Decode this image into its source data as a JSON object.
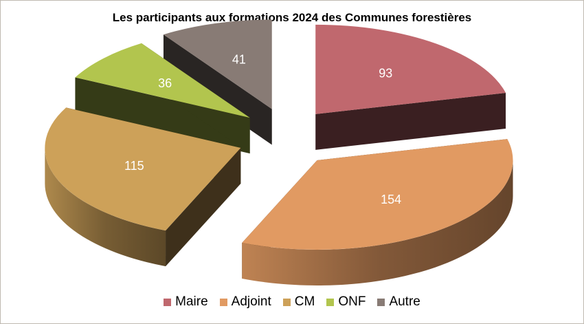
{
  "chart_data": {
    "type": "pie",
    "title": "Les participants aux formations 2024 des Communes forestières",
    "categories": [
      "Maire",
      "Adjoint",
      "CM",
      "ONF",
      "Autre"
    ],
    "values": [
      93,
      154,
      115,
      36,
      41
    ],
    "colors": [
      "#c0686e",
      "#e19a62",
      "#cda159",
      "#b2c54e",
      "#887b75"
    ],
    "legend": "bottom",
    "style": "3d-exploded"
  }
}
